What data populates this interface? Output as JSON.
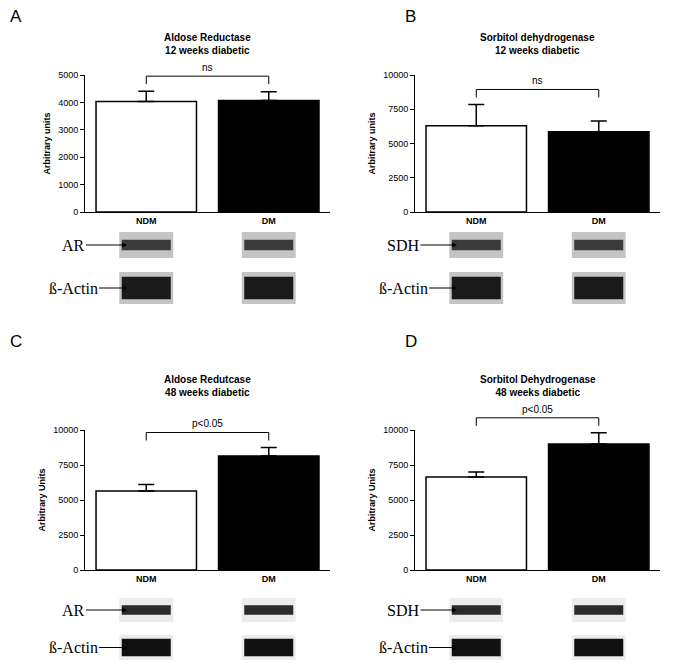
{
  "chart_data": [
    {
      "panel": "A",
      "type": "bar",
      "title": "Aldose Reductase",
      "subtitle": "12 weeks diabetic",
      "y_label": "Arbitrary units",
      "categories": [
        "NDM",
        "DM"
      ],
      "values": [
        4030,
        4070
      ],
      "errors": [
        380,
        320
      ],
      "colors": [
        "#ffffff",
        "#000000"
      ],
      "ylim": [
        0,
        5000
      ],
      "yticks": [
        0,
        1000,
        2000,
        3000,
        4000,
        5000
      ],
      "grid": false,
      "annotation": "ns",
      "blots": [
        "AR",
        "ß-Actin"
      ]
    },
    {
      "panel": "B",
      "type": "bar",
      "title": "Sorbitol dehydrogenase",
      "subtitle": "12 weeks diabetic",
      "y_label": "Arbitrary units",
      "categories": [
        "NDM",
        "DM"
      ],
      "values": [
        6300,
        5850
      ],
      "errors": [
        1550,
        800
      ],
      "colors": [
        "#ffffff",
        "#000000"
      ],
      "ylim": [
        0,
        10000
      ],
      "yticks": [
        0,
        2500,
        5000,
        7500,
        10000
      ],
      "grid": false,
      "annotation": "ns",
      "blots": [
        "SDH",
        "ß-Actin"
      ]
    },
    {
      "panel": "C",
      "type": "bar",
      "title": "Aldose Redutcase",
      "subtitle": "48 weeks diabetic",
      "y_label": "Arbitrary Units",
      "categories": [
        "NDM",
        "DM"
      ],
      "values": [
        5650,
        8150
      ],
      "errors": [
        450,
        600
      ],
      "colors": [
        "#ffffff",
        "#000000"
      ],
      "ylim": [
        0,
        10000
      ],
      "yticks": [
        0,
        2500,
        5000,
        7500,
        10000
      ],
      "grid": false,
      "annotation": "p<0.05",
      "blots": [
        "AR",
        "ß-Actin"
      ]
    },
    {
      "panel": "D",
      "type": "bar",
      "title": "Sorbitol Dehydrogenase",
      "subtitle": "48 weeks diabetic",
      "y_label": "Arbitrary Units",
      "categories": [
        "NDM",
        "DM"
      ],
      "values": [
        6650,
        9000
      ],
      "errors": [
        350,
        800
      ],
      "colors": [
        "#ffffff",
        "#000000"
      ],
      "ylim": [
        0,
        10000
      ],
      "yticks": [
        0,
        2500,
        5000,
        7500,
        10000
      ],
      "grid": false,
      "annotation": "p<0.05",
      "blots": [
        "SDH",
        "ß-Actin"
      ]
    }
  ]
}
